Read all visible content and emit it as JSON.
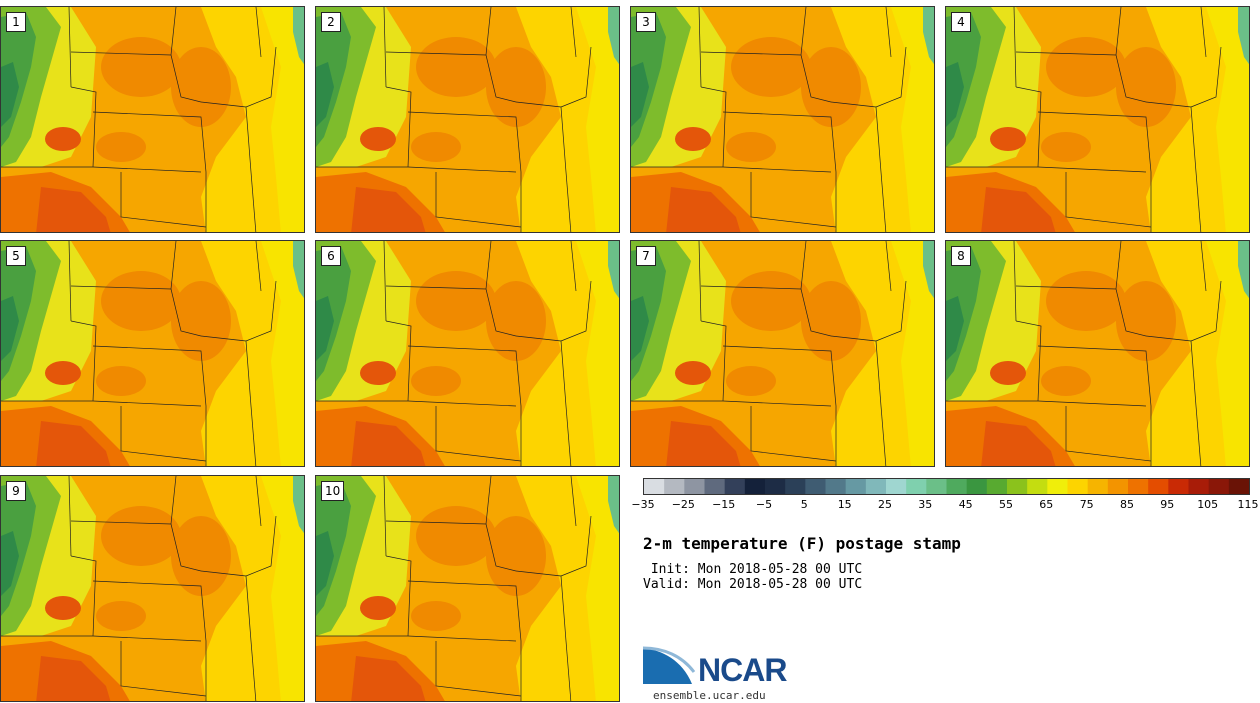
{
  "panels": [
    {
      "label": "1"
    },
    {
      "label": "2"
    },
    {
      "label": "3"
    },
    {
      "label": "4"
    },
    {
      "label": "5"
    },
    {
      "label": "6"
    },
    {
      "label": "7"
    },
    {
      "label": "8"
    },
    {
      "label": "9"
    },
    {
      "label": "10"
    }
  ],
  "colorbar": {
    "colors": [
      "#d9dde2",
      "#b4b9c1",
      "#8e95a2",
      "#5f6a7e",
      "#33405a",
      "#14213a",
      "#1d2c45",
      "#2b4058",
      "#3f5c72",
      "#52798a",
      "#6699a3",
      "#80b8ba",
      "#9fd6d0",
      "#7fd0ae",
      "#6bbf88",
      "#4faa5e",
      "#3a9640",
      "#58aa30",
      "#8bc21c",
      "#c4dd10",
      "#f0ee0a",
      "#fdd400",
      "#f6b400",
      "#f39400",
      "#ee7200",
      "#e44d00",
      "#c92a05",
      "#a81c08",
      "#8a1708",
      "#6a1306"
    ],
    "ticks": [
      "−35",
      "−25",
      "−15",
      "−5",
      "5",
      "15",
      "25",
      "35",
      "45",
      "55",
      "65",
      "75",
      "85",
      "95",
      "105",
      "115"
    ]
  },
  "title": "2-m temperature (F) postage stamp",
  "init_text": " Init: Mon 2018-05-28 00 UTC",
  "valid_text": "Valid: Mon 2018-05-28 00 UTC",
  "logo_text": "NCAR",
  "url": "ensemble.ucar.edu"
}
